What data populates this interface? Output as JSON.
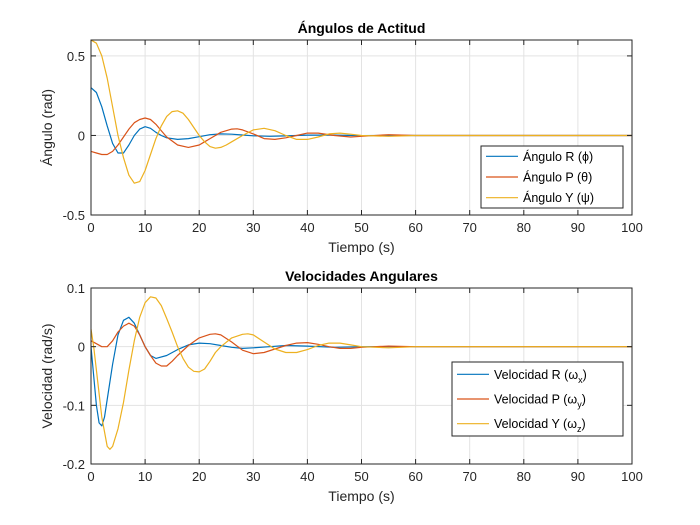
{
  "chart_data": [
    {
      "type": "line",
      "title": "Ángulos de Actitud",
      "xlabel": "Tiempo (s)",
      "ylabel": "Ángulo (rad)",
      "xlim": [
        0,
        100
      ],
      "ylim": [
        -0.5,
        0.6
      ],
      "xticks": [
        0,
        10,
        20,
        30,
        40,
        50,
        60,
        70,
        80,
        90,
        100
      ],
      "yticks": [
        -0.5,
        0,
        0.5
      ],
      "ytick_labels": [
        "-0.5",
        "0",
        "0.5"
      ],
      "grid": true,
      "legend_position": "bottom-right",
      "series": [
        {
          "name": "Ángulo R (ϕ)",
          "color": "#0072BD",
          "x": [
            0,
            1,
            2,
            3,
            4,
            5,
            6,
            7,
            8,
            9,
            10,
            11,
            12,
            13,
            14,
            16,
            18,
            20,
            22,
            24,
            26,
            28,
            30,
            33,
            36,
            40,
            45,
            50,
            55,
            60,
            70,
            80,
            90,
            100
          ],
          "y": [
            0.3,
            0.27,
            0.18,
            0.06,
            -0.05,
            -0.11,
            -0.11,
            -0.06,
            0.0,
            0.04,
            0.055,
            0.045,
            0.02,
            0.0,
            -0.015,
            -0.025,
            -0.02,
            -0.008,
            0.005,
            0.01,
            0.008,
            0.003,
            -0.002,
            -0.005,
            -0.003,
            0.002,
            0.002,
            -0.001,
            0.0,
            0.0,
            0.0,
            0.0,
            0.0,
            0.0
          ]
        },
        {
          "name": "Ángulo P (θ)",
          "color": "#D95319",
          "x": [
            0,
            1,
            2,
            3,
            4,
            5,
            6,
            7,
            8,
            9,
            10,
            11,
            12,
            13,
            14,
            16,
            18,
            20,
            21,
            22,
            24,
            26,
            27,
            28,
            30,
            32,
            34,
            36,
            38,
            40,
            42,
            45,
            48,
            50,
            55,
            60,
            70,
            80,
            90,
            100
          ],
          "y": [
            -0.1,
            -0.11,
            -0.12,
            -0.12,
            -0.1,
            -0.06,
            -0.01,
            0.04,
            0.08,
            0.1,
            0.11,
            0.1,
            0.07,
            0.03,
            -0.01,
            -0.06,
            -0.075,
            -0.06,
            -0.04,
            -0.02,
            0.02,
            0.04,
            0.042,
            0.035,
            0.01,
            -0.02,
            -0.025,
            -0.015,
            0.0,
            0.015,
            0.015,
            0.0,
            -0.01,
            -0.005,
            0.005,
            0.0,
            0.0,
            0.0,
            0.0,
            0.0
          ]
        },
        {
          "name": "Ángulo Y (ψ)",
          "color": "#EDB120",
          "x": [
            0,
            1,
            2,
            3,
            4,
            5,
            6,
            7,
            8,
            9,
            10,
            11,
            12,
            13,
            14,
            15,
            16,
            17,
            18,
            19,
            20,
            21,
            22,
            23,
            24,
            25,
            26,
            28,
            30,
            32,
            34,
            36,
            38,
            40,
            42,
            44,
            46,
            48,
            50,
            55,
            60,
            70,
            80,
            90,
            100
          ],
          "y": [
            0.6,
            0.58,
            0.5,
            0.36,
            0.18,
            0.0,
            -0.14,
            -0.25,
            -0.3,
            -0.29,
            -0.22,
            -0.12,
            -0.02,
            0.06,
            0.12,
            0.15,
            0.155,
            0.14,
            0.1,
            0.05,
            0.0,
            -0.04,
            -0.07,
            -0.08,
            -0.075,
            -0.06,
            -0.04,
            0.0,
            0.035,
            0.045,
            0.03,
            0.0,
            -0.025,
            -0.025,
            -0.01,
            0.01,
            0.015,
            0.008,
            0.0,
            -0.005,
            0.0,
            0.0,
            0.0,
            0.0,
            0.0
          ]
        }
      ]
    },
    {
      "type": "line",
      "title": "Velocidades Angulares",
      "xlabel": "Tiempo (s)",
      "ylabel": "Velocidad (rad/s)",
      "xlim": [
        0,
        100
      ],
      "ylim": [
        -0.2,
        0.1
      ],
      "xticks": [
        0,
        10,
        20,
        30,
        40,
        50,
        60,
        70,
        80,
        90,
        100
      ],
      "yticks": [
        -0.2,
        -0.1,
        0,
        0.1
      ],
      "ytick_labels": [
        "-0.2",
        "-0.1",
        "0",
        "0.1"
      ],
      "grid": true,
      "legend_position": "bottom-right",
      "series": [
        {
          "name": "Velocidad R (ωx)",
          "color": "#0072BD",
          "label_base": "Velocidad R (ω",
          "label_sub": "x",
          "x": [
            0,
            0.5,
            1,
            1.5,
            2,
            2.5,
            3,
            4,
            5,
            6,
            7,
            8,
            9,
            10,
            11,
            12,
            14,
            16,
            18,
            20,
            22,
            24,
            26,
            28,
            30,
            33,
            36,
            40,
            45,
            50,
            55,
            60,
            70,
            80,
            90,
            100
          ],
          "y": [
            0.0,
            -0.05,
            -0.1,
            -0.13,
            -0.135,
            -0.12,
            -0.09,
            -0.03,
            0.02,
            0.045,
            0.05,
            0.04,
            0.02,
            0.0,
            -0.015,
            -0.02,
            -0.015,
            -0.005,
            0.003,
            0.006,
            0.005,
            0.002,
            -0.001,
            -0.003,
            -0.002,
            0.0,
            0.002,
            0.001,
            -0.001,
            0.0,
            0.0,
            0.0,
            0.0,
            0.0,
            0.0,
            0.0
          ]
        },
        {
          "name": "Velocidad P (ωy)",
          "color": "#D95319",
          "label_base": "Velocidad P (ω",
          "label_sub": "y",
          "x": [
            0,
            1,
            2,
            3,
            4,
            5,
            6,
            7,
            8,
            9,
            10,
            11,
            12,
            13,
            14,
            15,
            16,
            18,
            20,
            22,
            23,
            24,
            26,
            28,
            30,
            32,
            34,
            36,
            38,
            40,
            42,
            44,
            46,
            48,
            50,
            55,
            60,
            70,
            80,
            90,
            100
          ],
          "y": [
            0.01,
            0.005,
            0.0,
            0.0,
            0.01,
            0.025,
            0.035,
            0.04,
            0.035,
            0.02,
            0.0,
            -0.015,
            -0.028,
            -0.033,
            -0.033,
            -0.025,
            -0.015,
            0.002,
            0.015,
            0.021,
            0.022,
            0.02,
            0.008,
            -0.006,
            -0.012,
            -0.01,
            -0.004,
            0.002,
            0.006,
            0.007,
            0.004,
            0.0,
            -0.003,
            -0.003,
            -0.001,
            0.001,
            0.0,
            0.0,
            0.0,
            0.0,
            0.0
          ]
        },
        {
          "name": "Velocidad Y (ωz)",
          "color": "#EDB120",
          "label_base": "Velocidad Y (ω",
          "label_sub": "z",
          "x": [
            0,
            0.5,
            1,
            2,
            3,
            3.5,
            4,
            5,
            6,
            7,
            8,
            9,
            10,
            11,
            12,
            13,
            14,
            15,
            16,
            17,
            18,
            19,
            20,
            21,
            22,
            23,
            24,
            26,
            28,
            29,
            30,
            32,
            34,
            36,
            38,
            40,
            42,
            44,
            46,
            48,
            50,
            55,
            60,
            70,
            80,
            90,
            100
          ],
          "y": [
            0.03,
            0.0,
            -0.04,
            -0.12,
            -0.17,
            -0.175,
            -0.17,
            -0.14,
            -0.095,
            -0.04,
            0.01,
            0.05,
            0.075,
            0.085,
            0.083,
            0.07,
            0.048,
            0.025,
            0.0,
            -0.02,
            -0.035,
            -0.042,
            -0.043,
            -0.038,
            -0.025,
            -0.01,
            0.0,
            0.015,
            0.021,
            0.022,
            0.02,
            0.008,
            -0.004,
            -0.01,
            -0.01,
            -0.005,
            0.002,
            0.006,
            0.006,
            0.003,
            0.0,
            -0.002,
            0.0,
            0.0,
            0.0,
            0.0,
            0.0
          ]
        }
      ]
    }
  ]
}
